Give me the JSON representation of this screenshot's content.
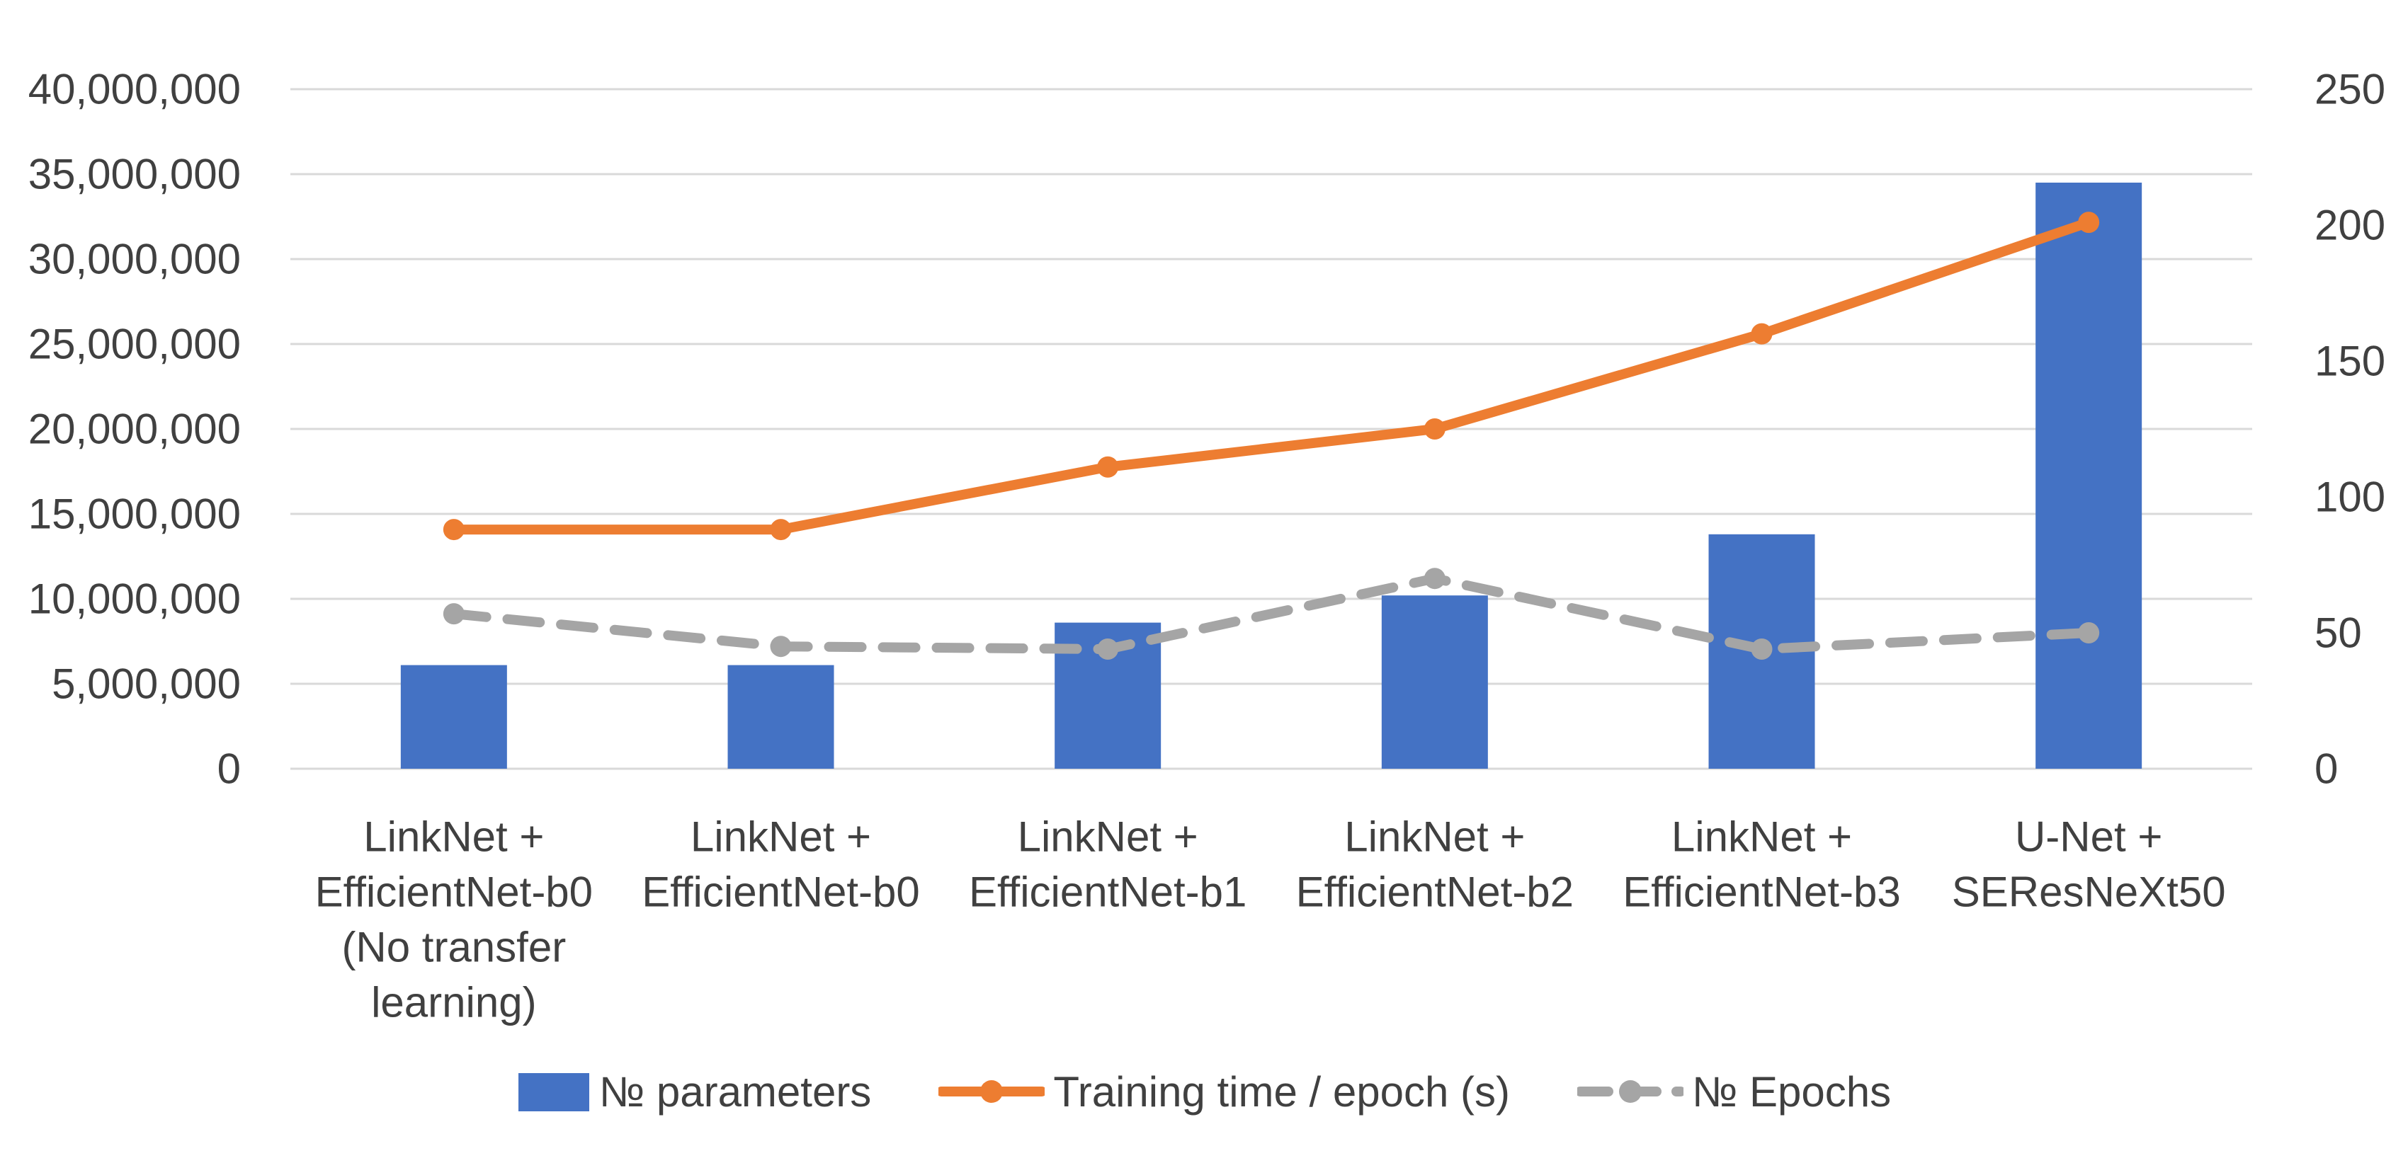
{
  "chart_data": {
    "type": "bar",
    "subtype": "dual-axis-combo",
    "title": "",
    "categories": [
      "LinkNet + EfficientNet-b0 (No transfer learning)",
      "LinkNet + EfficientNet-b0",
      "LinkNet + EfficientNet-b1",
      "LinkNet + EfficientNet-b2",
      "LinkNet + EfficientNet-b3",
      "U-Net + SEResNeXt50"
    ],
    "category_label_lines": [
      [
        "LinkNet +",
        "EfficientNet-b0",
        "(No transfer",
        "learning)"
      ],
      [
        "LinkNet +",
        "EfficientNet-b0"
      ],
      [
        "LinkNet +",
        "EfficientNet-b1"
      ],
      [
        "LinkNet +",
        "EfficientNet-b2"
      ],
      [
        "LinkNet +",
        "EfficientNet-b3"
      ],
      [
        "U-Net +",
        "SEResNeXt50"
      ]
    ],
    "series": [
      {
        "name": "№ parameters",
        "chart_type": "bar",
        "axis": "left",
        "color": "#4472C4",
        "values": [
          6100000,
          6100000,
          8600000,
          10200000,
          13800000,
          34500000
        ]
      },
      {
        "name": "Training time / epoch (s)",
        "chart_type": "line",
        "line_style": "solid",
        "marker": "circle",
        "axis": "right",
        "color": "#ED7D31",
        "values": [
          88,
          88,
          111,
          125,
          160,
          201
        ]
      },
      {
        "name": "№ Epochs",
        "chart_type": "line",
        "line_style": "dashed",
        "marker": "circle",
        "axis": "right",
        "color": "#A5A5A5",
        "values": [
          57,
          45,
          44,
          70,
          44,
          50
        ]
      }
    ],
    "left_axis": {
      "min": 0,
      "max": 40000000,
      "step": 5000000,
      "tick_labels": [
        "0",
        "5,000,000",
        "10,000,000",
        "15,000,000",
        "20,000,000",
        "25,000,000",
        "30,000,000",
        "35,000,000",
        "40,000,000"
      ]
    },
    "right_axis": {
      "min": 0,
      "max": 250,
      "step": 50,
      "tick_labels": [
        "0",
        "50",
        "100",
        "150",
        "200",
        "250"
      ]
    },
    "grid": true,
    "gridline_color": "#D9D9D9",
    "text_color": "#404040",
    "background": "#FFFFFF",
    "legend_position": "bottom"
  }
}
